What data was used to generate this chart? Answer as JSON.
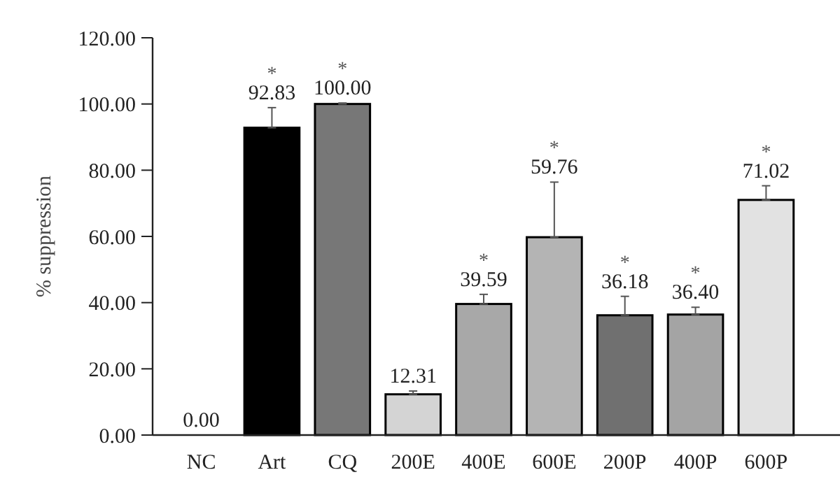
{
  "chart_data": {
    "type": "bar",
    "ylabel": "% suppression",
    "categories": [
      "NC",
      "Art",
      "CQ",
      "200E",
      "400E",
      "600E",
      "200P",
      "400P",
      "600P"
    ],
    "values": [
      0,
      92.83,
      100,
      12.31,
      39.59,
      59.76,
      36.18,
      36.4,
      71.02
    ],
    "colors": [
      "#ffffff",
      "#000000",
      "#777777",
      "#d4d4d4",
      "#a8a8a8",
      "#b4b4b4",
      "#707070",
      "#a4a4a4",
      "#e2e2e2"
    ],
    "value_labels": [
      "0.00",
      "92.83",
      "100.00",
      "12.31",
      "39.59",
      "59.76",
      "36.18",
      "36.40",
      "71.02"
    ],
    "errors": [
      null,
      [
        92.83,
        98.9
      ],
      [
        100,
        100.3
      ],
      [
        12.31,
        13.3
      ],
      [
        39.59,
        42.5
      ],
      [
        59.76,
        76.4
      ],
      [
        36.18,
        41.9
      ],
      [
        36.4,
        38.6
      ],
      [
        71.02,
        75.3
      ]
    ],
    "ylim": [
      0,
      120
    ],
    "yticks": [
      {
        "value": 0,
        "label": "0.00"
      },
      {
        "value": 20,
        "label": "20.00"
      },
      {
        "value": 40,
        "label": "40.00"
      },
      {
        "value": 60,
        "label": "60.00"
      },
      {
        "value": 80,
        "label": "80.00"
      },
      {
        "value": 100,
        "label": "100.00"
      },
      {
        "value": 120,
        "label": "120.00"
      }
    ],
    "grid": false,
    "annotations": [
      {
        "text": "*",
        "x": "Art",
        "y": 98.9
      },
      {
        "text": "*",
        "x": "CQ",
        "y": 100.3
      },
      {
        "text": "*",
        "x": "400E",
        "y": 42.5
      },
      {
        "text": "*",
        "x": "600E",
        "y": 76.4
      },
      {
        "text": "*",
        "x": "200P",
        "y": 41.9
      },
      {
        "text": "*",
        "x": "400P",
        "y": 38.6
      },
      {
        "text": "*",
        "x": "600P",
        "y": 75.3
      }
    ]
  }
}
